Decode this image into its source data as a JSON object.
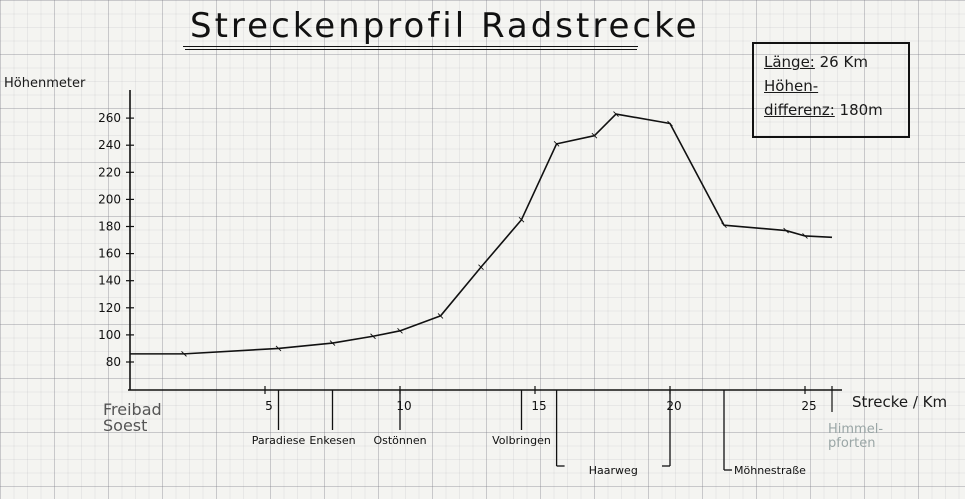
{
  "title": "Streckenprofil Radstrecke",
  "info": {
    "length_label": "Länge:",
    "length_value": "26 Km",
    "diff_label_1": "Höhen-",
    "diff_label_2": "differenz:",
    "diff_value": "180m"
  },
  "start_label": [
    "Freibad",
    "Soest"
  ],
  "end_label": [
    "Himmel-",
    "pforten"
  ],
  "chart_data": {
    "type": "line",
    "title": "Streckenprofil Radstrecke",
    "xlabel": "Strecke / Km",
    "ylabel": "Höhenmeter",
    "xlim": [
      0,
      26
    ],
    "ylim": [
      70,
      270
    ],
    "x_ticks": [
      5,
      10,
      15,
      20,
      25
    ],
    "y_ticks": [
      80,
      100,
      120,
      140,
      160,
      180,
      200,
      220,
      240,
      260
    ],
    "grid": true,
    "series": [
      {
        "values": [
          {
            "x": 0,
            "y": 86
          },
          {
            "x": 2,
            "y": 86
          },
          {
            "x": 5.5,
            "y": 90
          },
          {
            "x": 7.5,
            "y": 94
          },
          {
            "x": 9,
            "y": 99
          },
          {
            "x": 10,
            "y": 103
          },
          {
            "x": 11.5,
            "y": 114
          },
          {
            "x": 13,
            "y": 150
          },
          {
            "x": 14.5,
            "y": 185
          },
          {
            "x": 15.8,
            "y": 241
          },
          {
            "x": 17.2,
            "y": 247
          },
          {
            "x": 18,
            "y": 263
          },
          {
            "x": 20,
            "y": 256
          },
          {
            "x": 22,
            "y": 181
          },
          {
            "x": 24.3,
            "y": 177
          },
          {
            "x": 25,
            "y": 173
          },
          {
            "x": 26,
            "y": 172
          }
        ]
      }
    ],
    "places": [
      {
        "name": "Paradiese",
        "x": 5.5,
        "label_row": 0
      },
      {
        "name": "Enkesen",
        "x": 7.5,
        "label_row": 0
      },
      {
        "name": "Ostönnen",
        "x": 10,
        "label_row": 0
      },
      {
        "name": "Volbringen",
        "x": 14.5,
        "label_row": 0
      },
      {
        "name": "Haarweg",
        "x": 15.8,
        "x_end": 20,
        "label_row": 1
      },
      {
        "name": "Möhnestraße",
        "x": 22,
        "label_row": 1
      }
    ]
  }
}
